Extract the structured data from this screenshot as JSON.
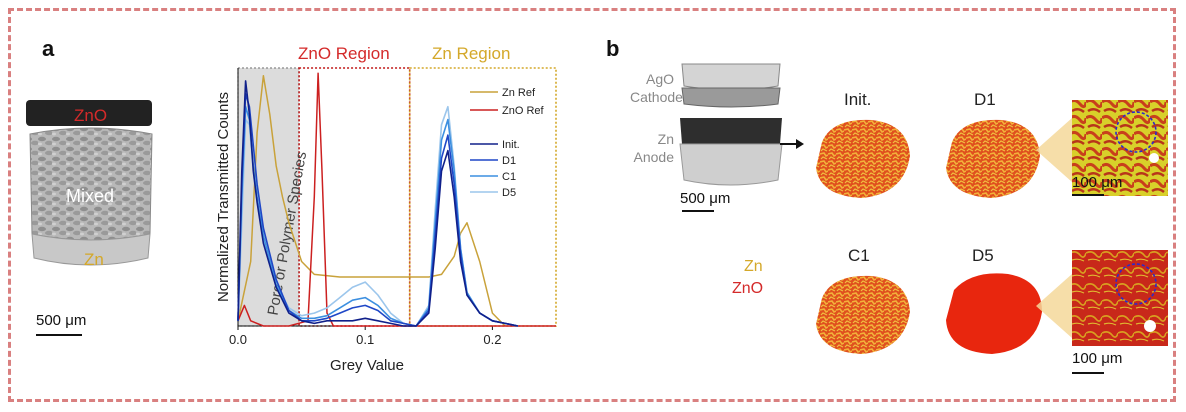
{
  "panel_a": {
    "letter": "a",
    "sample_labels": {
      "zno": "ZnO",
      "mixed": "Mixed",
      "zn": "Zn"
    },
    "scale_bar": "500 μm"
  },
  "panel_b": {
    "letter": "b",
    "cell_labels": {
      "cathode": "AgO\nCathode",
      "anode": "Zn\nAnode"
    },
    "cell_scale_bar": "500 μm",
    "stage_labels": [
      "Init.",
      "D1",
      "C1",
      "D5"
    ],
    "legend": {
      "zn": "Zn",
      "zno": "ZnO"
    },
    "zoom_scale_bars": [
      "100 μm",
      "100 μm"
    ]
  },
  "colors": {
    "zn": "#d4a82a",
    "zno": "#d42a2a",
    "region_border": "#d42a2a",
    "dashed_frame": "#d98080"
  },
  "chart_data": {
    "type": "line",
    "title": "",
    "xlabel": "Grey Value",
    "ylabel": "Normalized Transmitted Counts",
    "xlim": [
      0.0,
      0.25
    ],
    "ylim": [
      0,
      1
    ],
    "xticks": [
      0.0,
      0.1,
      0.2
    ],
    "xtick_labels": [
      "0.0",
      "0.1",
      "0.2"
    ],
    "regions": [
      {
        "label": "Pore or Polymer Species",
        "x0": 0.0,
        "x1": 0.048
      },
      {
        "label": "ZnO Region",
        "x0": 0.048,
        "x1": 0.135
      },
      {
        "label": "Zn Region",
        "x0": 0.135,
        "x1": 0.25
      }
    ],
    "series": [
      {
        "name": "Zn Ref",
        "color": "#c9a23a",
        "width": 1.5,
        "x": [
          0.0,
          0.01,
          0.015,
          0.02,
          0.025,
          0.03,
          0.035,
          0.04,
          0.05,
          0.06,
          0.08,
          0.1,
          0.12,
          0.14,
          0.15,
          0.16,
          0.17,
          0.175,
          0.18,
          0.19,
          0.2,
          0.21
        ],
        "y": [
          0.02,
          0.25,
          0.75,
          0.97,
          0.82,
          0.62,
          0.5,
          0.4,
          0.25,
          0.2,
          0.19,
          0.19,
          0.19,
          0.19,
          0.19,
          0.2,
          0.27,
          0.36,
          0.4,
          0.25,
          0.05,
          0.0
        ]
      },
      {
        "name": "ZnO Ref",
        "color": "#cc2020",
        "width": 1.5,
        "x": [
          0.0,
          0.005,
          0.01,
          0.02,
          0.04,
          0.055,
          0.06,
          0.063,
          0.066,
          0.07,
          0.075,
          0.08,
          0.1,
          0.25
        ],
        "y": [
          0.02,
          0.08,
          0.02,
          0.0,
          0.0,
          0.02,
          0.5,
          0.98,
          0.6,
          0.05,
          0.0,
          0.0,
          0.0,
          0.0
        ]
      },
      {
        "name": "Init.",
        "color": "#10208a",
        "width": 1.6,
        "x": [
          0.0,
          0.003,
          0.006,
          0.009,
          0.012,
          0.015,
          0.02,
          0.03,
          0.04,
          0.05,
          0.06,
          0.07,
          0.08,
          0.09,
          0.1,
          0.11,
          0.12,
          0.13,
          0.14,
          0.15,
          0.155,
          0.16,
          0.165,
          0.17,
          0.175,
          0.18,
          0.19,
          0.2,
          0.21,
          0.22
        ],
        "y": [
          0.02,
          0.6,
          0.95,
          0.82,
          0.6,
          0.48,
          0.32,
          0.15,
          0.05,
          0.02,
          0.01,
          0.02,
          0.02,
          0.02,
          0.03,
          0.02,
          0.01,
          0.0,
          0.0,
          0.05,
          0.3,
          0.6,
          0.68,
          0.5,
          0.25,
          0.12,
          0.05,
          0.02,
          0.01,
          0.0
        ]
      },
      {
        "name": "D1",
        "color": "#1f47c7",
        "width": 1.6,
        "x": [
          0.0,
          0.003,
          0.006,
          0.009,
          0.012,
          0.015,
          0.02,
          0.03,
          0.04,
          0.05,
          0.06,
          0.07,
          0.08,
          0.09,
          0.1,
          0.11,
          0.12,
          0.13,
          0.14,
          0.15,
          0.155,
          0.16,
          0.165,
          0.17,
          0.175,
          0.18,
          0.19,
          0.2,
          0.21,
          0.22
        ],
        "y": [
          0.02,
          0.55,
          0.9,
          0.85,
          0.7,
          0.55,
          0.38,
          0.18,
          0.06,
          0.02,
          0.02,
          0.03,
          0.05,
          0.07,
          0.08,
          0.06,
          0.02,
          0.01,
          0.0,
          0.06,
          0.35,
          0.65,
          0.74,
          0.55,
          0.28,
          0.12,
          0.05,
          0.02,
          0.01,
          0.0
        ]
      },
      {
        "name": "C1",
        "color": "#3c8fe0",
        "width": 1.6,
        "x": [
          0.0,
          0.003,
          0.006,
          0.009,
          0.012,
          0.015,
          0.02,
          0.03,
          0.04,
          0.05,
          0.06,
          0.07,
          0.08,
          0.09,
          0.1,
          0.11,
          0.12,
          0.13,
          0.14,
          0.15,
          0.155,
          0.16,
          0.165,
          0.17,
          0.175,
          0.18,
          0.19,
          0.2,
          0.21,
          0.22
        ],
        "y": [
          0.02,
          0.5,
          0.85,
          0.8,
          0.62,
          0.5,
          0.35,
          0.16,
          0.06,
          0.03,
          0.03,
          0.04,
          0.07,
          0.1,
          0.11,
          0.08,
          0.03,
          0.01,
          0.0,
          0.07,
          0.4,
          0.72,
          0.8,
          0.6,
          0.3,
          0.13,
          0.05,
          0.02,
          0.01,
          0.0
        ]
      },
      {
        "name": "D5",
        "color": "#9cc6ec",
        "width": 1.6,
        "x": [
          0.0,
          0.003,
          0.006,
          0.009,
          0.012,
          0.015,
          0.02,
          0.03,
          0.04,
          0.05,
          0.06,
          0.07,
          0.08,
          0.09,
          0.1,
          0.11,
          0.12,
          0.13,
          0.14,
          0.15,
          0.155,
          0.16,
          0.165,
          0.17,
          0.175,
          0.18,
          0.19,
          0.2,
          0.21,
          0.22
        ],
        "y": [
          0.02,
          0.4,
          0.8,
          0.78,
          0.6,
          0.48,
          0.33,
          0.16,
          0.07,
          0.04,
          0.05,
          0.07,
          0.11,
          0.15,
          0.17,
          0.12,
          0.05,
          0.01,
          0.0,
          0.08,
          0.45,
          0.78,
          0.85,
          0.62,
          0.3,
          0.13,
          0.05,
          0.02,
          0.01,
          0.0
        ]
      }
    ],
    "legend_placement": "top-right",
    "grid": false
  }
}
